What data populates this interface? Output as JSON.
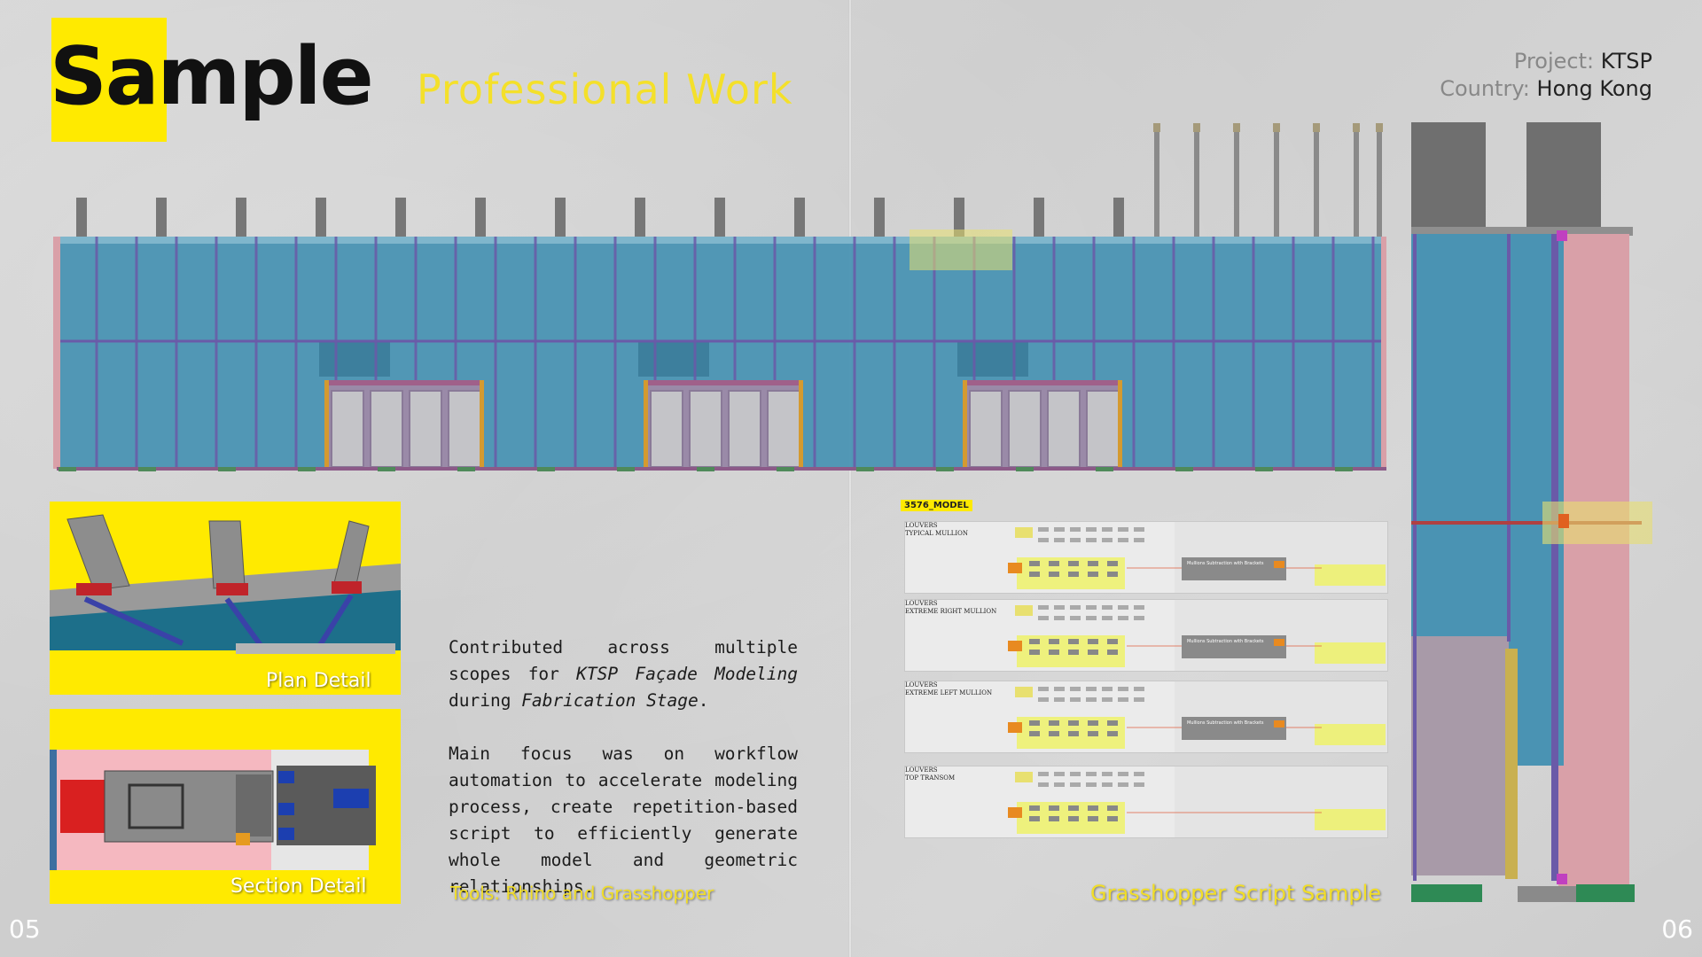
{
  "title": {
    "main": "Sample",
    "sub": "Professional Work"
  },
  "project": {
    "project_label": "Project:",
    "project_value": "KTSP",
    "country_label": "Country:",
    "country_value": "Hong Kong"
  },
  "details": {
    "plan_caption": "Plan Detail",
    "section_caption": "Section Detail"
  },
  "description": {
    "p1_a": "Contributed across multiple scopes for",
    "p1_em": "KTSP Façade Modeling",
    "p1_b": " during ",
    "p1_em2": "Fabrication Stage",
    "p1_c": ".",
    "p2": "Main focus was on workflow automation to accelerate modeling process, create repetition-based script to efficiently generate whole model and geometric relationships.",
    "tools": "Tools: Rhino and Grasshopper"
  },
  "grasshopper": {
    "tag": "3576_MODEL",
    "caption": "Grasshopper Script Sample",
    "group_label": "Mullions Subtraction with Brackets",
    "panels": [
      {
        "line1": "LOUVERS",
        "line2": "TYPICAL MULLION"
      },
      {
        "line1": "LOUVERS",
        "line2": "EXTREME RIGHT MULLION"
      },
      {
        "line1": "LOUVERS",
        "line2": "EXTREME LEFT MULLION"
      },
      {
        "line1": "LOUVERS",
        "line2": "TOP TRANSOM"
      }
    ]
  },
  "pages": {
    "left": "05",
    "right": "06"
  },
  "colors": {
    "accent_yellow": "#ffea00",
    "glass_blue": "#4a93b3",
    "mullion_purple": "#6a5aa8",
    "frame_pink": "#d9a0a8"
  }
}
